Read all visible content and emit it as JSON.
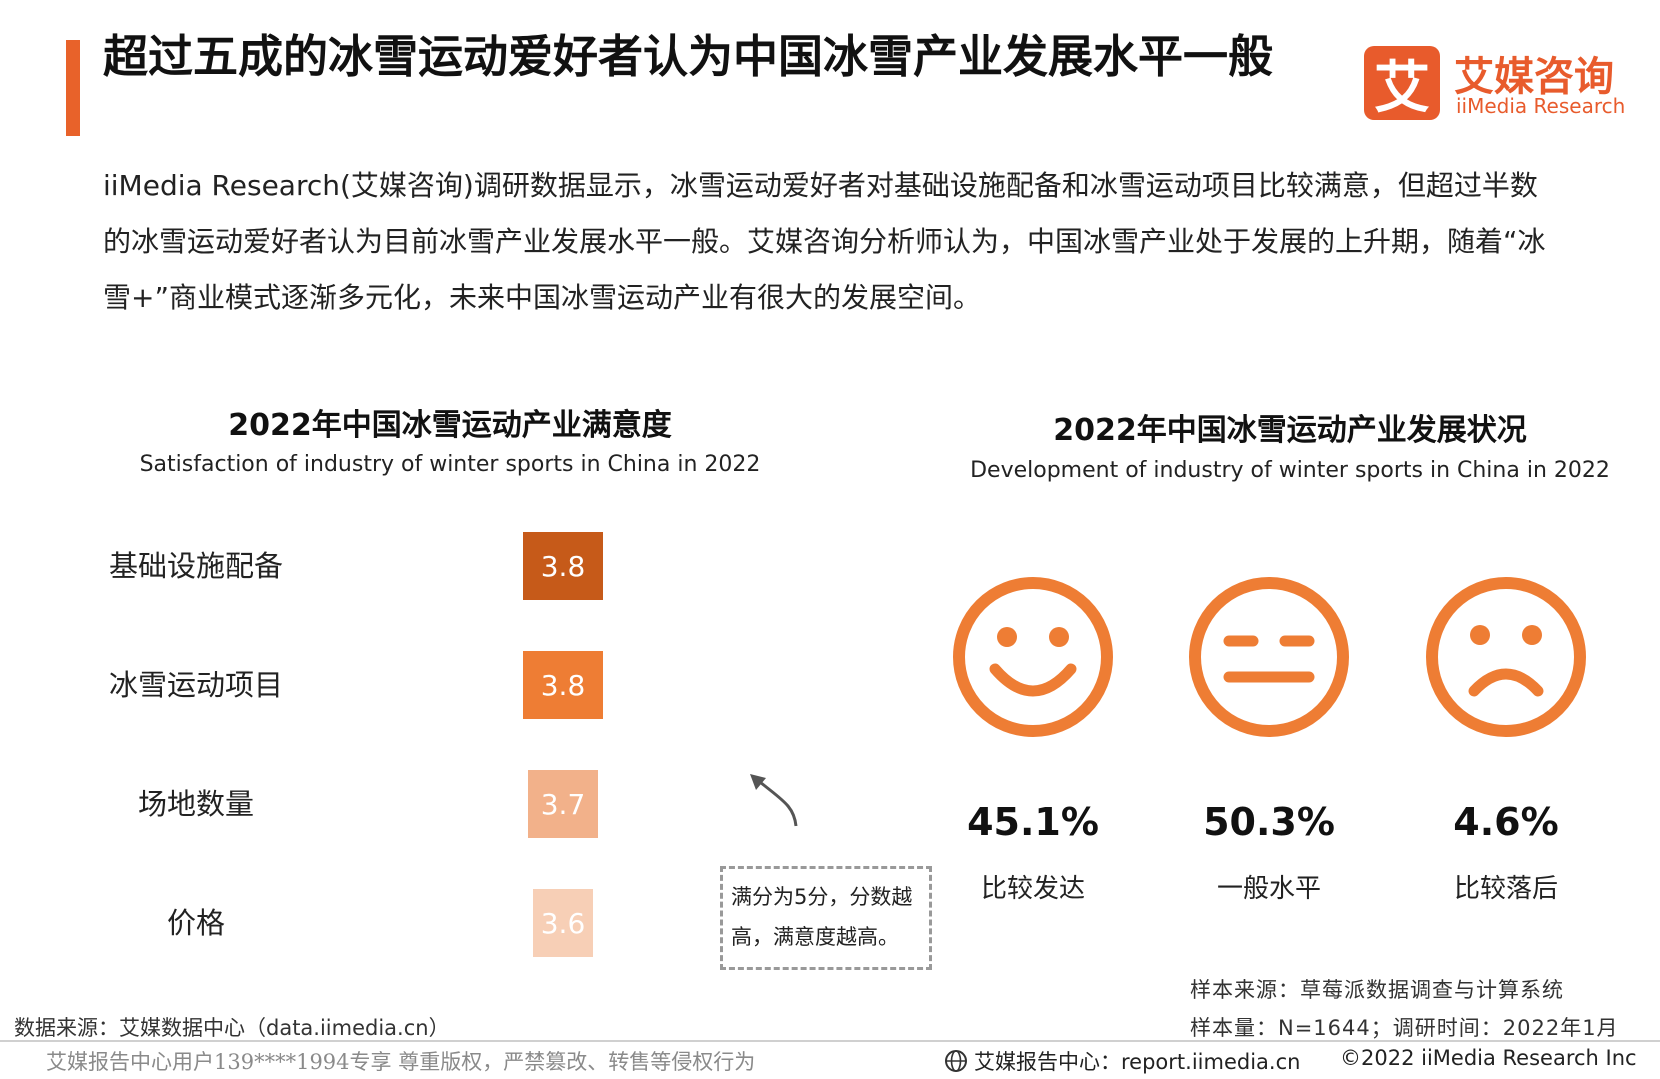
{
  "header": {
    "title": "超过五成的冰雪运动爱好者认为中国冰雪产业发展水平一般",
    "logo_mark": "艾",
    "logo_cn": "艾媒咨询",
    "logo_en": "iiMedia Research"
  },
  "intro": "iiMedia Research(艾媒咨询)调研数据显示，冰雪运动爱好者对基础设施配备和冰雪运动项目比较满意，但超过半数的冰雪运动爱好者认为目前冰雪产业发展水平一般。艾媒咨询分析师认为，中国冰雪产业处于发展的上升期，随着“冰雪+”商业模式逐渐多元化，未来中国冰雪运动产业有很大的发展空间。",
  "chart_data": [
    {
      "type": "bar",
      "orientation": "horizontal",
      "title": "2022年中国冰雪运动产业满意度",
      "subtitle": "Satisfaction of industry of winter sports in China in 2022",
      "categories": [
        "基础设施配备",
        "冰雪运动项目",
        "场地数量",
        "价格"
      ],
      "values": [
        3.8,
        3.8,
        3.7,
        3.6
      ],
      "value_labels": [
        "3.8",
        "3.8",
        "3.7",
        "3.6"
      ],
      "colors": [
        "#c65a19",
        "#ee7d34",
        "#f2b18a",
        "#f7cfb6"
      ],
      "xlim": [
        0,
        5
      ],
      "grid": false
    },
    {
      "type": "table",
      "title": "2022年中国冰雪运动产业发展状况",
      "subtitle": "Development of industry of winter sports in China in 2022",
      "items": [
        {
          "icon": "smiling-face-icon",
          "value": 45.1,
          "value_label": "45.1%",
          "label": "比较发达"
        },
        {
          "icon": "neutral-face-icon",
          "value": 50.3,
          "value_label": "50.3%",
          "label": "一般水平"
        },
        {
          "icon": "sad-face-icon",
          "value": 4.6,
          "value_label": "4.6%",
          "label": "比较落后"
        }
      ],
      "color": "#ee7d34"
    }
  ],
  "note": {
    "line1": "满分为5分，分数越",
    "line2": "高，满意度越高。"
  },
  "footer": {
    "sample_source": "样本来源：草莓派数据调查与计算系统",
    "sample_size": "样本量：N=1644；调研时间：2022年1月",
    "data_source": "数据来源：艾媒数据中心（data.iimedia.cn）",
    "watermark": "艾媒报告中心用户139****1994专享 尊重版权，严禁篡改、转售等侵权行为",
    "report": "艾媒报告中心：report.iimedia.cn",
    "copyright": "©2022  iiMedia Research  Inc"
  }
}
